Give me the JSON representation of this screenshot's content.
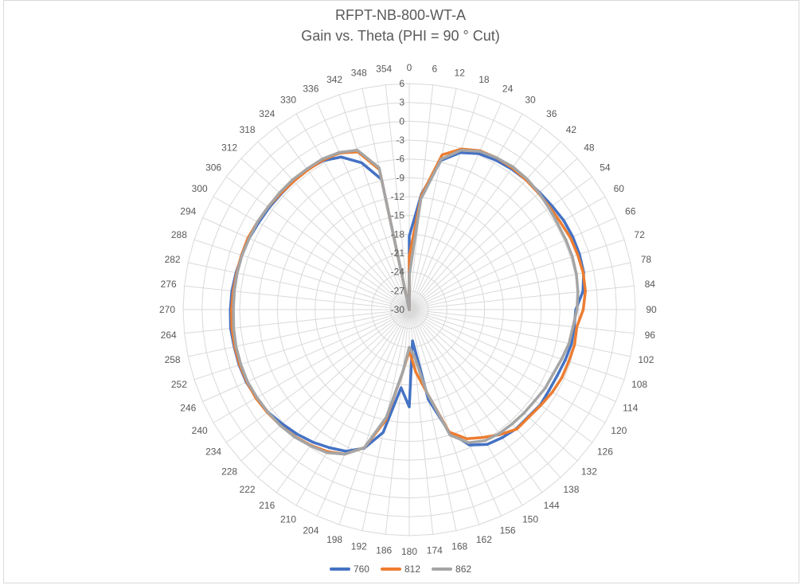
{
  "chart_data": {
    "type": "line",
    "subtype": "polar-radar",
    "title": "RFPT-NB-800-WT-A",
    "subtitle": "Gain vs. Theta (PHI = 90 ° Cut)",
    "angles": [
      0,
      6,
      12,
      18,
      24,
      30,
      36,
      42,
      48,
      54,
      60,
      66,
      72,
      78,
      84,
      90,
      96,
      102,
      108,
      114,
      120,
      126,
      132,
      138,
      144,
      150,
      156,
      162,
      168,
      174,
      180,
      186,
      192,
      198,
      204,
      210,
      216,
      222,
      228,
      234,
      240,
      246,
      252,
      258,
      264,
      270,
      276,
      282,
      288,
      294,
      300,
      306,
      312,
      318,
      324,
      330,
      336,
      342,
      348,
      354
    ],
    "radial_ticks": [
      6,
      3,
      0,
      -3,
      -6,
      -9,
      -12,
      -15,
      -18,
      -21,
      -24,
      -27,
      -30
    ],
    "rlim": [
      -30,
      6
    ],
    "grid": true,
    "legend_position": "bottom",
    "series": [
      {
        "name": "760",
        "color": "#4472C4",
        "values": [
          -18.3,
          -11.5,
          -5.7,
          -3.7,
          -2.8,
          -2.5,
          -2.3,
          -2.2,
          -2.1,
          -1.9,
          -1.6,
          -1.5,
          -1.5,
          -1.6,
          -2.2,
          -3.5,
          -3.6,
          -3.6,
          -3.9,
          -4.2,
          -4.3,
          -4.2,
          -4.5,
          -4.5,
          -4.8,
          -5.2,
          -6.4,
          -9.5,
          -15.4,
          -25.0,
          -14.5,
          -17.5,
          -10.0,
          -6.8,
          -5.3,
          -4.6,
          -3.9,
          -3.3,
          -2.8,
          -2.2,
          -1.9,
          -1.6,
          -1.5,
          -1.5,
          -1.4,
          -1.5,
          -1.6,
          -1.8,
          -2.0,
          -2.1,
          -2.3,
          -2.4,
          -2.5,
          -2.5,
          -2.4,
          -2.6,
          -3.4,
          -5.4,
          -8.8,
          -30.0
        ]
      },
      {
        "name": "812",
        "color": "#ED7D31",
        "values": [
          -21.5,
          -11.8,
          -4.8,
          -3.1,
          -2.3,
          -2.1,
          -2.1,
          -2.2,
          -2.3,
          -2.3,
          -2.2,
          -1.9,
          -1.8,
          -1.7,
          -1.8,
          -2.3,
          -3.2,
          -3.1,
          -3.3,
          -3.4,
          -3.7,
          -4.1,
          -4.4,
          -4.4,
          -5.4,
          -6.5,
          -7.5,
          -9.5,
          -16.5,
          -20.0,
          -23.5,
          -20.0,
          -12.0,
          -6.9,
          -4.8,
          -3.9,
          -3.3,
          -2.8,
          -2.4,
          -2.1,
          -1.8,
          -1.7,
          -1.6,
          -1.6,
          -1.6,
          -1.7,
          -1.8,
          -1.9,
          -1.9,
          -1.9,
          -2.1,
          -2.2,
          -2.4,
          -2.5,
          -2.5,
          -2.5,
          -2.7,
          -3.6,
          -7.2,
          -30.0
        ]
      },
      {
        "name": "862",
        "color": "#A5A5A5",
        "values": [
          -24.6,
          -12.3,
          -5.5,
          -3.3,
          -2.4,
          -2.1,
          -1.9,
          -2.0,
          -2.2,
          -2.5,
          -2.7,
          -2.7,
          -2.7,
          -2.8,
          -3.0,
          -3.3,
          -3.8,
          -4.0,
          -4.5,
          -4.9,
          -5.0,
          -5.3,
          -5.4,
          -5.5,
          -5.6,
          -5.9,
          -6.8,
          -9.0,
          -16.5,
          -22.6,
          -24.0,
          -20.0,
          -12.5,
          -6.9,
          -4.8,
          -3.7,
          -3.2,
          -2.7,
          -2.4,
          -2.2,
          -2.0,
          -1.8,
          -1.8,
          -1.8,
          -1.9,
          -2.0,
          -2.0,
          -2.0,
          -2.0,
          -2.1,
          -2.1,
          -2.2,
          -2.2,
          -2.2,
          -2.3,
          -2.3,
          -2.6,
          -3.3,
          -6.9,
          -30.0
        ]
      }
    ]
  }
}
